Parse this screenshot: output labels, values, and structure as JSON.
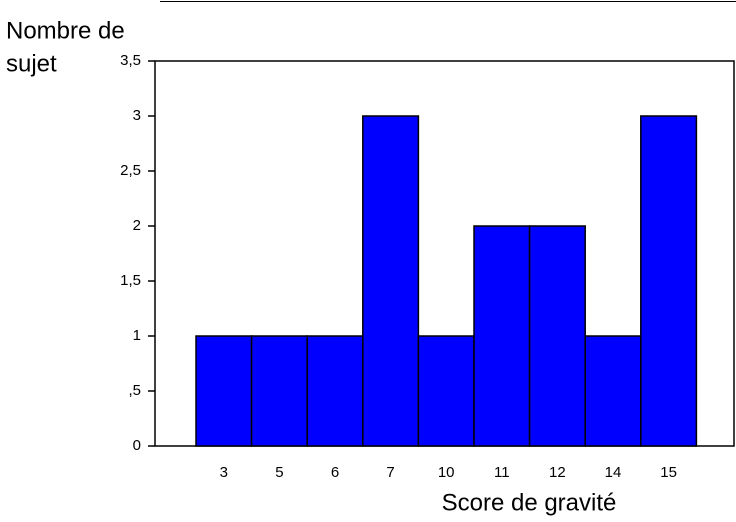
{
  "chart_data": {
    "type": "bar",
    "y_label": [
      "Nombre de",
      "sujet"
    ],
    "x_label": "Score de gravité",
    "categories": [
      "3",
      "5",
      "6",
      "7",
      "10",
      "11",
      "12",
      "14",
      "15"
    ],
    "values": [
      1,
      1,
      1,
      3,
      1,
      2,
      2,
      1,
      3
    ],
    "color": "#0000ff",
    "ylim": [
      0,
      3.5
    ],
    "yticks": [
      0,
      {
        "value": 0.5,
        "label": ",5"
      },
      1,
      {
        "value": 1.5,
        "label": "1,5"
      },
      2,
      {
        "value": 2.5,
        "label": "2,5"
      },
      3,
      {
        "value": 3.5,
        "label": "3,5"
      }
    ],
    "grid": false
  }
}
